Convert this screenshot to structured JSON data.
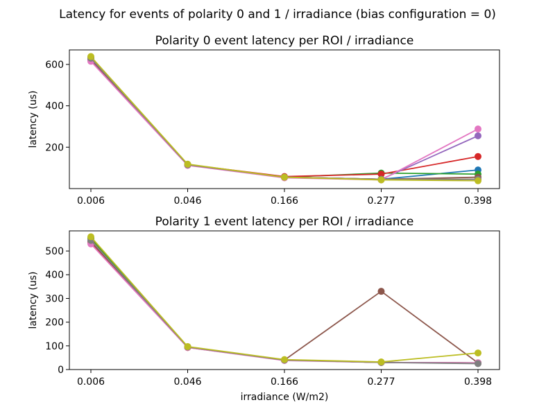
{
  "figure": {
    "suptitle": "Latency for events of polarity 0 and 1 / irradiance (bias configuration = 0)"
  },
  "chart_data": [
    {
      "type": "line",
      "title": "Polarity 0 event latency per ROI / irradiance",
      "xlabel": "",
      "ylabel": "latency (us)",
      "categories": [
        "0.006",
        "0.046",
        "0.166",
        "0.277",
        "0.398"
      ],
      "ylim": [
        0,
        670
      ],
      "yticks": [
        200,
        400,
        600
      ],
      "series": [
        {
          "color": "#1f77b4",
          "values": [
            630,
            115,
            55,
            45,
            90
          ]
        },
        {
          "color": "#ff7f0e",
          "values": [
            625,
            115,
            55,
            45,
            45
          ]
        },
        {
          "color": "#2ca02c",
          "values": [
            635,
            115,
            55,
            75,
            70
          ]
        },
        {
          "color": "#d62728",
          "values": [
            630,
            116,
            58,
            70,
            155
          ]
        },
        {
          "color": "#9467bd",
          "values": [
            625,
            115,
            55,
            45,
            255
          ]
        },
        {
          "color": "#8c564b",
          "values": [
            620,
            115,
            55,
            45,
            55
          ]
        },
        {
          "color": "#e377c2",
          "values": [
            615,
            112,
            52,
            42,
            288
          ]
        },
        {
          "color": "#7f7f7f",
          "values": [
            630,
            115,
            55,
            45,
            45
          ]
        },
        {
          "color": "#bcbd22",
          "values": [
            638,
            118,
            55,
            42,
            38
          ]
        }
      ]
    },
    {
      "type": "line",
      "title": "Polarity 1 event latency per ROI / irradiance",
      "xlabel": "irradiance (W/m2)",
      "ylabel": "latency (us)",
      "categories": [
        "0.006",
        "0.046",
        "0.166",
        "0.277",
        "0.398"
      ],
      "ylim": [
        0,
        585
      ],
      "yticks": [
        0,
        100,
        200,
        300,
        400,
        500
      ],
      "series": [
        {
          "color": "#1f77b4",
          "values": [
            545,
            95,
            40,
            30,
            28
          ]
        },
        {
          "color": "#ff7f0e",
          "values": [
            550,
            95,
            40,
            30,
            28
          ]
        },
        {
          "color": "#2ca02c",
          "values": [
            555,
            95,
            40,
            30,
            28
          ]
        },
        {
          "color": "#d62728",
          "values": [
            535,
            93,
            40,
            30,
            28
          ]
        },
        {
          "color": "#9467bd",
          "values": [
            545,
            95,
            40,
            30,
            28
          ]
        },
        {
          "color": "#8c564b",
          "values": [
            540,
            95,
            40,
            330,
            28
          ]
        },
        {
          "color": "#e377c2",
          "values": [
            530,
            93,
            38,
            30,
            28
          ]
        },
        {
          "color": "#7f7f7f",
          "values": [
            545,
            95,
            40,
            30,
            25
          ]
        },
        {
          "color": "#bcbd22",
          "values": [
            560,
            97,
            42,
            32,
            70
          ]
        }
      ]
    }
  ]
}
